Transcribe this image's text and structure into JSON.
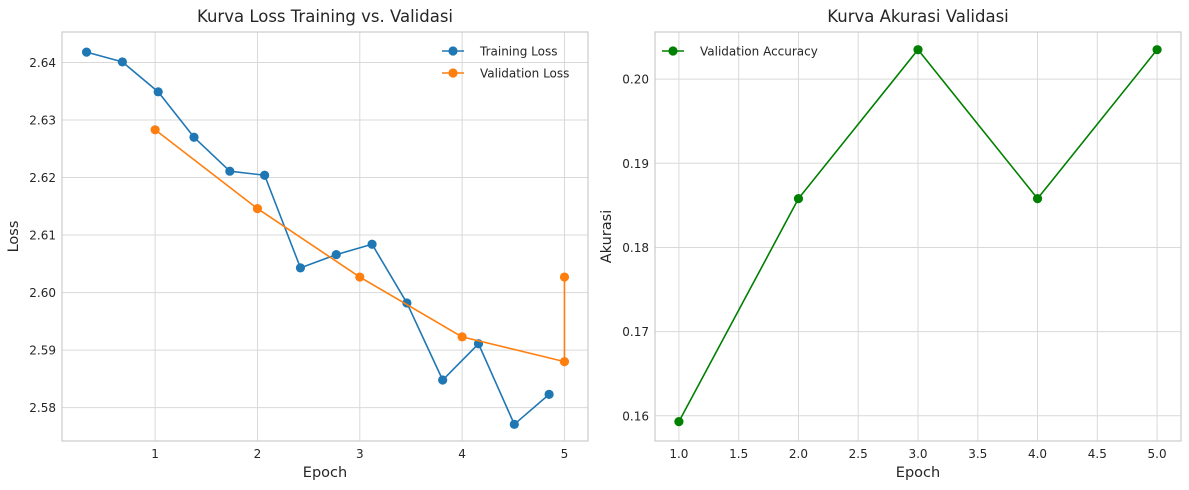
{
  "colors": {
    "training": "#1f77b4",
    "validation": "#ff7f0e",
    "accuracy": "#008000"
  },
  "chart_data": [
    {
      "type": "line",
      "title": "Kurva Loss Training vs. Validasi",
      "xlabel": "Epoch",
      "ylabel": "Loss",
      "xlim": [
        0.09,
        5.23
      ],
      "ylim": [
        2.5742,
        2.6453
      ],
      "xticks": [
        1,
        2,
        3,
        4,
        5
      ],
      "xtick_labels": [
        "1",
        "2",
        "3",
        "4",
        "5"
      ],
      "yticks": [
        2.58,
        2.59,
        2.6,
        2.61,
        2.62,
        2.63,
        2.64
      ],
      "ytick_labels": [
        "2.58",
        "2.59",
        "2.60",
        "2.61",
        "2.62",
        "2.63",
        "2.64"
      ],
      "grid": true,
      "legend_position": "top-right",
      "series": [
        {
          "name": "Training Loss",
          "color_key": "training",
          "x": [
            0.33,
            0.68,
            1.03,
            1.38,
            1.73,
            2.07,
            2.42,
            2.77,
            3.12,
            3.46,
            3.81,
            4.16,
            4.51,
            4.85
          ],
          "y": [
            2.6418,
            2.6401,
            2.6349,
            2.627,
            2.6211,
            2.6204,
            2.6043,
            2.6066,
            2.6084,
            2.5982,
            2.5848,
            2.5911,
            2.5771,
            2.5823
          ]
        },
        {
          "name": "Validation Loss",
          "color_key": "validation",
          "x": [
            1,
            2,
            3,
            4,
            5,
            5
          ],
          "y": [
            2.6283,
            2.6146,
            2.6027,
            2.5923,
            2.588,
            2.6027
          ]
        }
      ]
    },
    {
      "type": "line",
      "title": "Kurva Akurasi Validasi",
      "xlabel": "Epoch",
      "ylabel": "Akurasi",
      "xlim": [
        0.8,
        5.2
      ],
      "ylim": [
        0.157,
        0.2056
      ],
      "xticks": [
        1.0,
        1.5,
        2.0,
        2.5,
        3.0,
        3.5,
        4.0,
        4.5,
        5.0
      ],
      "xtick_labels": [
        "1.0",
        "1.5",
        "2.0",
        "2.5",
        "3.0",
        "3.5",
        "4.0",
        "4.5",
        "5.0"
      ],
      "yticks": [
        0.16,
        0.17,
        0.18,
        0.19,
        0.2
      ],
      "ytick_labels": [
        "0.16",
        "0.17",
        "0.18",
        "0.19",
        "0.20"
      ],
      "grid": true,
      "legend_position": "top-left",
      "series": [
        {
          "name": "Validation Accuracy",
          "color_key": "accuracy",
          "x": [
            1,
            2,
            3,
            4,
            5
          ],
          "y": [
            0.1593,
            0.1858,
            0.2035,
            0.1858,
            0.2035
          ]
        }
      ]
    }
  ]
}
